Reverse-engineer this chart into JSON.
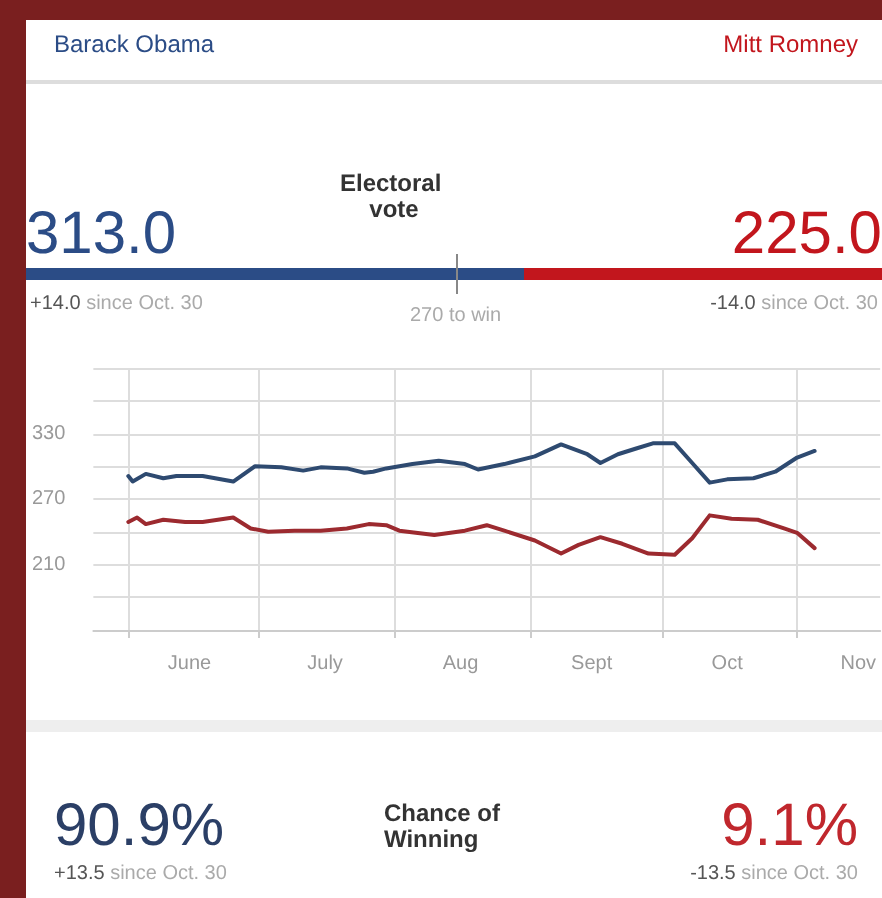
{
  "chart_data": [
    {
      "type": "bar",
      "orientation": "horizontal",
      "stacked": true,
      "title": "Electoral vote",
      "categories": [
        null
      ],
      "tick_labels": false,
      "legend": false,
      "grid": false,
      "series": [
        {
          "name": "Barack Obama",
          "color": "#2b4c86",
          "values": [
            313
          ],
          "value_labels": [
            "313.0"
          ]
        },
        {
          "name": "Mitt Romney",
          "color": "#c2161d",
          "values": [
            225
          ],
          "value_labels": [
            "225.0"
          ]
        }
      ],
      "annotations": [
        "+14.0 since Oct. 30",
        "-14.0 since Oct. 30"
      ],
      "ref_lines": [
        {
          "axis": "x",
          "value": 270,
          "label": "270 to win",
          "color": "#888888"
        }
      ]
    },
    {
      "type": "line",
      "grid": true,
      "marker": "none",
      "line_style": "solid",
      "legend": false,
      "xlim": [
        "--05-24",
        "--11-20"
      ],
      "xticks": [
        {
          "value": "--06-01",
          "label": null
        },
        {
          "value": "--06-15",
          "label": "June"
        },
        {
          "value": "--07-01",
          "label": null
        },
        {
          "value": "--07-16",
          "label": "July"
        },
        {
          "value": "--08-01",
          "label": null
        },
        {
          "value": "--08-16",
          "label": "Aug"
        },
        {
          "value": "--09-01",
          "label": null
        },
        {
          "value": "--09-15",
          "label": "Sept"
        },
        {
          "value": "--10-01",
          "label": null
        },
        {
          "value": "--10-16",
          "label": "Oct"
        },
        {
          "value": "--11-01",
          "label": null
        },
        {
          "value": "--11-15",
          "label": "Nov"
        }
      ],
      "ylim": [
        150,
        390
      ],
      "yticks": [
        {
          "value": 150,
          "label": null
        },
        {
          "value": 180,
          "label": null
        },
        210,
        {
          "value": 240,
          "label": null
        },
        270,
        {
          "value": 300,
          "label": null
        },
        330,
        {
          "value": 360,
          "label": null
        },
        {
          "value": 390,
          "label": null
        }
      ],
      "series": [
        {
          "color": "#2e4a70",
          "x": [
            "--06-01",
            "--06-02",
            "--06-05",
            "--06-09",
            "--06-12",
            "--06-18",
            "--06-25",
            "--06-30",
            "--07-06",
            "--07-11",
            "--07-15",
            "--07-21",
            "--07-25",
            "--07-27",
            "--07-30",
            "--08-05",
            "--08-11",
            "--08-17",
            "--08-20",
            "--08-26",
            "--09-02",
            "--09-08",
            "--09-14",
            "--09-17",
            "--09-21",
            "--09-25",
            "--09-29",
            "--10-04",
            "--10-08",
            "--10-12",
            "--10-16",
            "--10-22",
            "--10-27",
            "--11-01",
            "--11-05"
          ],
          "values": [
            291,
            286,
            293,
            289,
            291,
            291,
            286,
            300,
            299,
            296,
            299,
            298,
            294,
            295,
            298,
            302,
            305,
            302,
            297,
            302,
            309,
            320,
            311,
            303,
            311,
            316,
            321,
            321,
            303,
            285,
            288,
            289,
            295,
            308,
            314
          ]
        },
        {
          "color": "#9c2a2f",
          "x": [
            "--06-01",
            "--06-03",
            "--06-05",
            "--06-09",
            "--06-14",
            "--06-18",
            "--06-25",
            "--06-29",
            "--07-03",
            "--07-09",
            "--07-15",
            "--07-21",
            "--07-26",
            "--07-30",
            "--08-02",
            "--08-10",
            "--08-17",
            "--08-22",
            "--08-26",
            "--09-02",
            "--09-08",
            "--09-12",
            "--09-17",
            "--09-22",
            "--09-28",
            "--10-04",
            "--10-08",
            "--10-12",
            "--10-17",
            "--10-23",
            "--10-29",
            "--11-01",
            "--11-05"
          ],
          "values": [
            249,
            253,
            247,
            251,
            249,
            249,
            253,
            243,
            240,
            241,
            241,
            243,
            247,
            246,
            241,
            237,
            241,
            246,
            241,
            232,
            220,
            228,
            235,
            229,
            220,
            219,
            234,
            255,
            252,
            251,
            243,
            239,
            225
          ]
        }
      ]
    },
    {
      "type": "other",
      "title": "Chance of Winning",
      "colors": [
        "#2b3f66",
        "#c0272d"
      ],
      "annotations": [
        "90.9%",
        "+13.5 since Oct. 30",
        "9.1%",
        "-13.5 since Oct. 30"
      ]
    }
  ]
}
